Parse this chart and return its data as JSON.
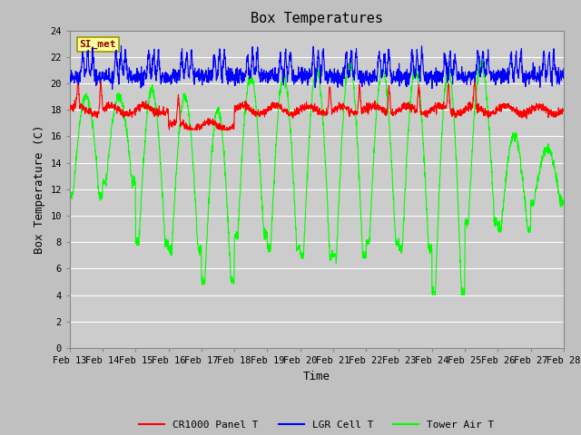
{
  "title": "Box Temperatures",
  "xlabel": "Time",
  "ylabel": "Box Temperature (C)",
  "ylim": [
    0,
    24
  ],
  "yticks": [
    0,
    2,
    4,
    6,
    8,
    10,
    12,
    14,
    16,
    18,
    20,
    22,
    24
  ],
  "date_labels": [
    "Feb 13",
    "Feb 14",
    "Feb 15",
    "Feb 16",
    "Feb 17",
    "Feb 18",
    "Feb 19",
    "Feb 20",
    "Feb 21",
    "Feb 22",
    "Feb 23",
    "Feb 24",
    "Feb 25",
    "Feb 26",
    "Feb 27",
    "Feb 28"
  ],
  "annotation_text": "SI_met",
  "annotation_color": "#8B0000",
  "annotation_bg": "#FFFF99",
  "annotation_border": "#999900",
  "cr1000_color": "#FF0000",
  "lgr_color": "#0000FF",
  "tower_color": "#00FF00",
  "legend_items": [
    "CR1000 Panel T",
    "LGR Cell T",
    "Tower Air T"
  ],
  "fig_bg": "#C0C0C0",
  "plot_bg": "#CCCCCC",
  "grid_color": "#FFFFFF",
  "title_fontsize": 11,
  "axis_label_fontsize": 9,
  "tick_fontsize": 7.5
}
